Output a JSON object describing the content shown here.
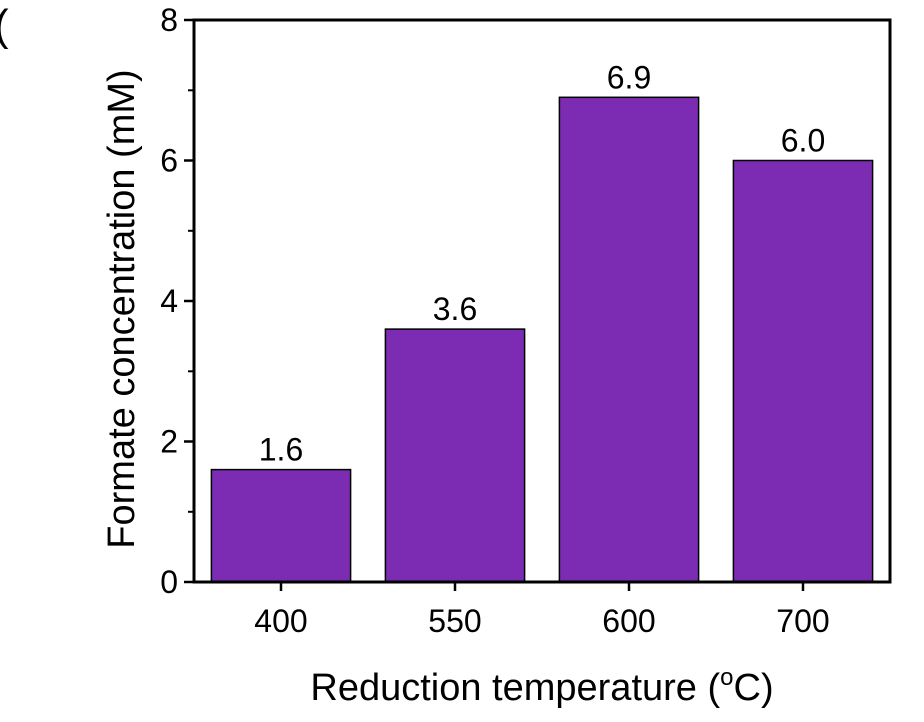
{
  "panel_label": "(",
  "chart_data": {
    "type": "bar",
    "title": "",
    "categories": [
      "400",
      "550",
      "600",
      "700"
    ],
    "values": [
      1.6,
      3.6,
      6.9,
      6.0
    ],
    "data_labels": [
      "1.6",
      "3.6",
      "6.9",
      "6.0"
    ],
    "xlabel": "Reduction temperature (",
    "xlabel_degree": "o",
    "xlabel_unit": "C)",
    "ylabel": "Formate concentration (mM)",
    "ylim": [
      0,
      8
    ],
    "yticks": [
      0,
      2,
      4,
      6,
      8
    ],
    "ytick_labels": [
      "0",
      "2",
      "4",
      "6",
      "8"
    ],
    "grid": false,
    "legend": "none",
    "colors": {
      "bar_fill": "#7b2cb3",
      "bar_stroke": "#000000",
      "axis": "#000000"
    }
  }
}
